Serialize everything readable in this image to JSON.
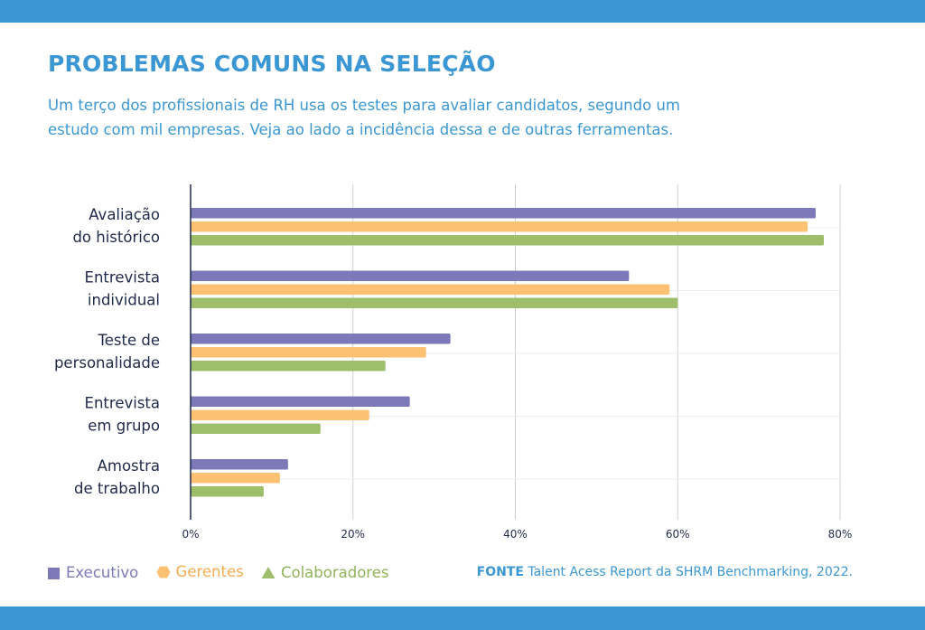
{
  "header": {
    "title": "PROBLEMAS COMUNS NA SELEÇÃO",
    "subtitle_line1": "Um terço dos profissionais de RH usa os testes para avaliar candidatos, segundo um",
    "subtitle_line2": "estudo com mil empresas. Veja ao lado a incidência dessa e de outras ferramentas."
  },
  "colors": {
    "band": "#3b97d3",
    "executivo": "#7b79b8",
    "gerentes": "#fcc173",
    "colaboradores": "#9ebe6c"
  },
  "chart_data": {
    "type": "bar",
    "orientation": "horizontal",
    "categories": [
      [
        "Avaliação",
        "do histórico"
      ],
      [
        "Entrevista",
        "individual"
      ],
      [
        "Teste de",
        "personalidade"
      ],
      [
        "Entrevista",
        "em grupo"
      ],
      [
        "Amostra",
        "de trabalho"
      ]
    ],
    "series": [
      {
        "name": "Executivo",
        "marker": "square",
        "values": [
          77,
          54,
          32,
          27,
          12
        ]
      },
      {
        "name": "Gerentes",
        "marker": "hexagon",
        "values": [
          76,
          59,
          29,
          22,
          11
        ]
      },
      {
        "name": "Colaboradores",
        "marker": "triangle",
        "values": [
          78,
          60,
          24,
          16,
          9
        ]
      }
    ],
    "xlim": [
      0,
      80
    ],
    "xticks": [
      0,
      20,
      40,
      60,
      80
    ],
    "xtick_labels": [
      "0%",
      "20%",
      "40%",
      "60%",
      "80%"
    ],
    "grid": true
  },
  "legend": {
    "executivo": "Executivo",
    "gerentes": "Gerentes",
    "colaboradores": "Colaboradores"
  },
  "source": {
    "label": "FONTE",
    "text": " Talent Acess Report da SHRM Benchmarking, 2022."
  }
}
